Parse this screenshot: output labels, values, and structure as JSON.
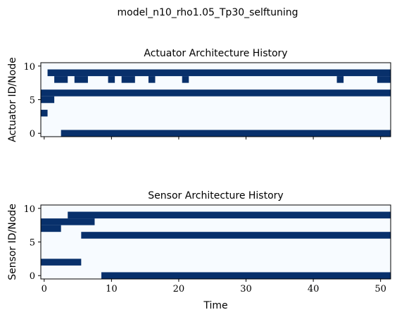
{
  "figure": {
    "suptitle": "model_n10_rho1.05_Tp30_selftuning",
    "xlabel": "Time"
  },
  "colors": {
    "active": "#08306b",
    "inactive": "#f7fbff",
    "axis": "#000000"
  },
  "chart_data": [
    {
      "type": "heatmap",
      "title": "Actuator Architecture History",
      "ylabel": "Actuator ID/Node",
      "xlim": [
        -0.5,
        51.5
      ],
      "ylim": [
        -0.5,
        10.5
      ],
      "xticks": [
        0,
        10,
        20,
        30,
        40,
        50
      ],
      "yticks": [
        0,
        5,
        10
      ],
      "show_xtick_labels": false,
      "active_intervals": [
        {
          "node": 0,
          "from": 2.5,
          "to": 51.5
        },
        {
          "node": 3,
          "from": -0.5,
          "to": 0.5
        },
        {
          "node": 5,
          "from": -0.5,
          "to": 1.5
        },
        {
          "node": 6,
          "from": -0.5,
          "to": 51.5
        },
        {
          "node": 8,
          "from": 1.5,
          "to": 3.5
        },
        {
          "node": 8,
          "from": 4.5,
          "to": 6.5
        },
        {
          "node": 8,
          "from": 9.5,
          "to": 10.5
        },
        {
          "node": 8,
          "from": 11.5,
          "to": 13.5
        },
        {
          "node": 8,
          "from": 15.5,
          "to": 16.5
        },
        {
          "node": 8,
          "from": 20.5,
          "to": 21.5
        },
        {
          "node": 8,
          "from": 43.5,
          "to": 44.5
        },
        {
          "node": 8,
          "from": 49.5,
          "to": 51.5
        },
        {
          "node": 9,
          "from": 0.5,
          "to": 51.5
        }
      ]
    },
    {
      "type": "heatmap",
      "title": "Sensor Architecture History",
      "ylabel": "Sensor ID/Node",
      "xlim": [
        -0.5,
        51.5
      ],
      "ylim": [
        -0.5,
        10.5
      ],
      "xticks": [
        0,
        10,
        20,
        30,
        40,
        50
      ],
      "yticks": [
        0,
        5,
        10
      ],
      "show_xtick_labels": true,
      "active_intervals": [
        {
          "node": 0,
          "from": 8.5,
          "to": 51.5
        },
        {
          "node": 2,
          "from": -0.5,
          "to": 5.5
        },
        {
          "node": 6,
          "from": 5.5,
          "to": 51.5
        },
        {
          "node": 7,
          "from": -0.5,
          "to": 2.5
        },
        {
          "node": 8,
          "from": -0.5,
          "to": 7.5
        },
        {
          "node": 9,
          "from": 3.5,
          "to": 51.5
        }
      ]
    }
  ]
}
